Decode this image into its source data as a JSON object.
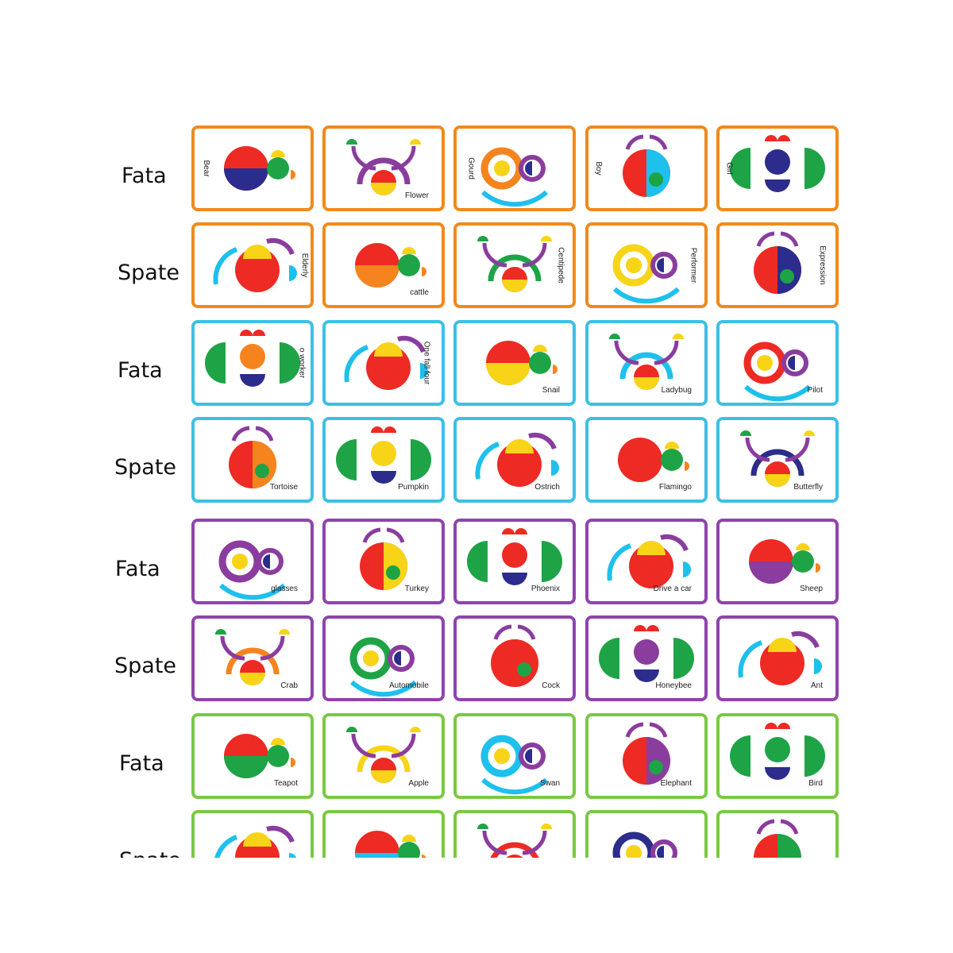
{
  "row_labels": [
    "Fata",
    "Spate",
    "Fata",
    "Spate",
    "Fata",
    "Spate",
    "Fata",
    "Spate"
  ],
  "group_colors": {
    "orange": "#f08a1c",
    "blue": "#3cc0e6",
    "purple": "#8e44ad",
    "green": "#7ac943"
  },
  "palette": {
    "red": "#ee2a24",
    "green": "#1ea446",
    "blue": "#2c2c8c",
    "yellow": "#f7d417",
    "purple": "#8a3d9e",
    "cyan": "#1ec0ec",
    "orange": "#f5841f"
  },
  "cards": [
    {
      "name": "Bear",
      "orient": "vl"
    },
    {
      "name": "Flower",
      "orient": "br"
    },
    {
      "name": "Gourd",
      "orient": "vl"
    },
    {
      "name": "Boy",
      "orient": "vl"
    },
    {
      "name": "Girl",
      "orient": "vl"
    },
    {
      "name": "Elderly",
      "orient": "vr"
    },
    {
      "name": "cattle",
      "orient": "br"
    },
    {
      "name": "Centipede",
      "orient": "vr"
    },
    {
      "name": "Performer",
      "orient": "vr"
    },
    {
      "name": "Expression",
      "orient": "vr"
    },
    {
      "name": "o worker",
      "orient": "vr"
    },
    {
      "name": "One fall four",
      "orient": "vr"
    },
    {
      "name": "Snail",
      "orient": "br"
    },
    {
      "name": "Ladybug",
      "orient": "br"
    },
    {
      "name": "Pilot",
      "orient": "br"
    },
    {
      "name": "Tortoise",
      "orient": "br"
    },
    {
      "name": "Pumpkin",
      "orient": "br"
    },
    {
      "name": "Ostrich",
      "orient": "br"
    },
    {
      "name": "Flamingo",
      "orient": "br"
    },
    {
      "name": "Butterfly",
      "orient": "br"
    },
    {
      "name": "glasses",
      "orient": "br"
    },
    {
      "name": "Turkey",
      "orient": "br"
    },
    {
      "name": "Phoenix",
      "orient": "br"
    },
    {
      "name": "Drive a car",
      "orient": "br"
    },
    {
      "name": "Sheep",
      "orient": "br"
    },
    {
      "name": "Crab",
      "orient": "br"
    },
    {
      "name": "Automobile",
      "orient": "br"
    },
    {
      "name": "Cock",
      "orient": "br"
    },
    {
      "name": "Honeybee",
      "orient": "br"
    },
    {
      "name": "Ant",
      "orient": "br"
    },
    {
      "name": "Teapot",
      "orient": "br"
    },
    {
      "name": "Apple",
      "orient": "br"
    },
    {
      "name": "Swan",
      "orient": "br"
    },
    {
      "name": "Elephant",
      "orient": "br"
    },
    {
      "name": "Bird",
      "orient": "br"
    },
    {
      "name": "",
      "orient": "br"
    },
    {
      "name": "",
      "orient": "br"
    },
    {
      "name": "",
      "orient": "br"
    },
    {
      "name": "",
      "orient": "br"
    },
    {
      "name": "",
      "orient": "br"
    }
  ]
}
